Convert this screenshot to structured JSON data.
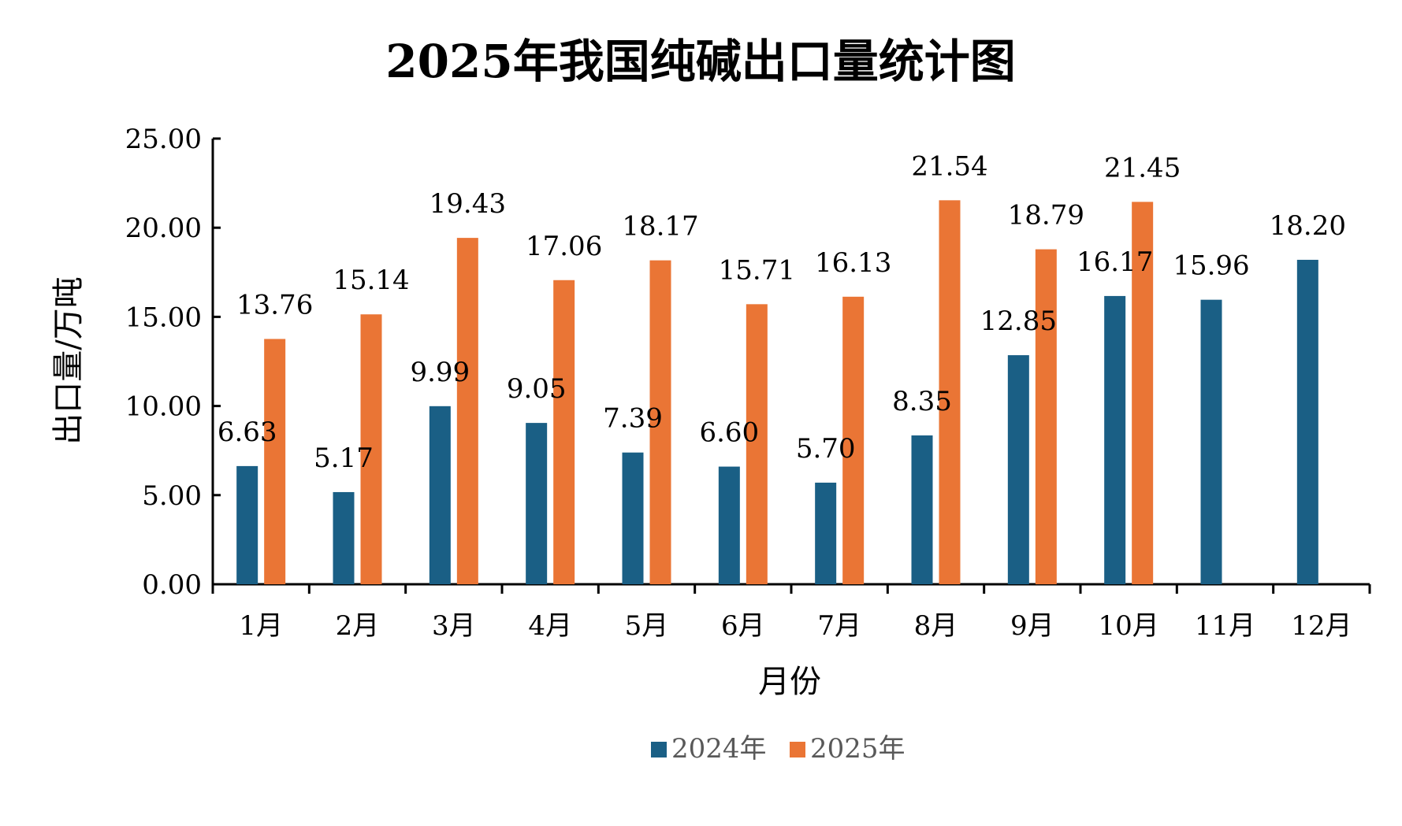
{
  "chart_data": {
    "type": "bar",
    "title": "2025年我国纯碱出口量统计图",
    "xlabel": "月份",
    "ylabel": "出口量/万吨",
    "ylim": [
      0,
      25
    ],
    "yticks": [
      "0.00",
      "5.00",
      "10.00",
      "15.00",
      "20.00",
      "25.00"
    ],
    "categories": [
      "1月",
      "2月",
      "3月",
      "4月",
      "5月",
      "6月",
      "7月",
      "8月",
      "9月",
      "10月",
      "11月",
      "12月"
    ],
    "series": [
      {
        "name": "2024年",
        "color": "#1a5f85",
        "values": [
          6.63,
          5.17,
          9.99,
          9.05,
          7.39,
          6.6,
          5.7,
          8.35,
          12.85,
          16.17,
          15.96,
          18.2
        ],
        "labels": [
          "6.63",
          "5.17",
          "9.99",
          "9.05",
          "7.39",
          "6.60",
          "5.70",
          "8.35",
          "12.85",
          "16.17",
          "15.96",
          "18.20"
        ]
      },
      {
        "name": "2025年",
        "color": "#ea7535",
        "values": [
          13.76,
          15.14,
          19.43,
          17.06,
          18.17,
          15.71,
          16.13,
          21.54,
          18.79,
          21.45,
          null,
          null
        ],
        "labels": [
          "13.76",
          "15.14",
          "19.43",
          "17.06",
          "18.17",
          "15.71",
          "16.13",
          "21.54",
          "18.79",
          "21.45",
          null,
          null
        ]
      }
    ],
    "legend_position": "bottom",
    "grid": false
  }
}
